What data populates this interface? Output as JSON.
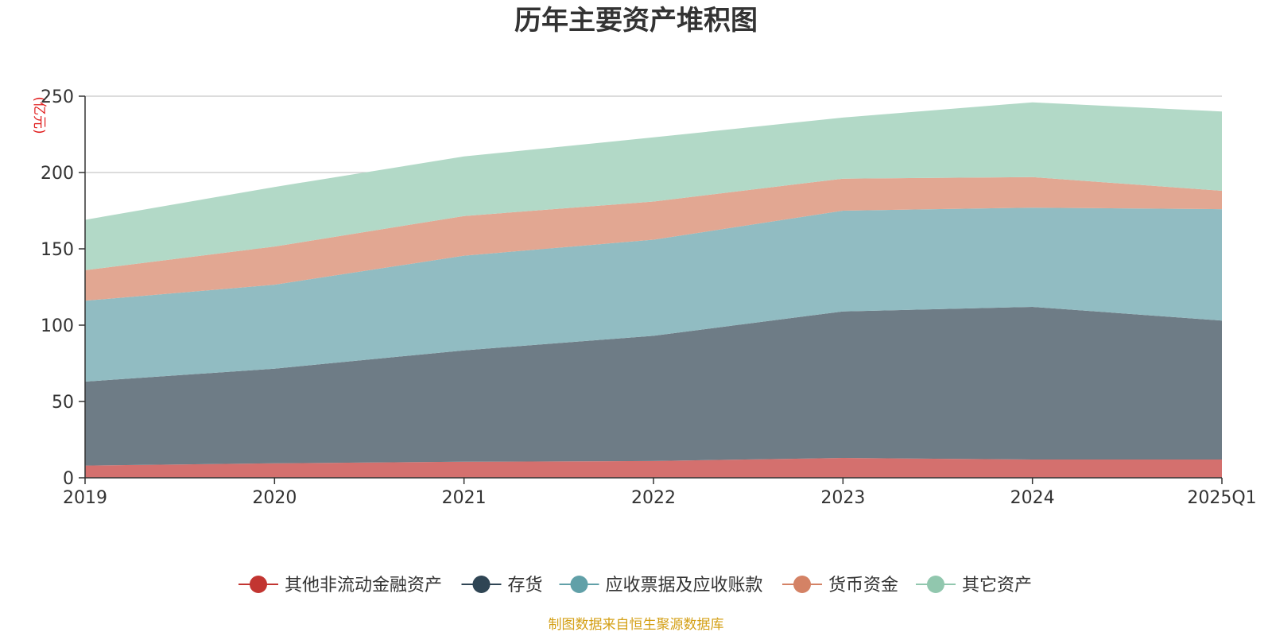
{
  "chart_data": {
    "type": "area",
    "stacked": true,
    "title": "历年主要资产堆积图",
    "unit_label": "(亿元)",
    "categories": [
      "2019",
      "2020",
      "2021",
      "2022",
      "2023",
      "2024",
      "2025Q1"
    ],
    "ylim": [
      0,
      250
    ],
    "yticks": [
      0,
      50,
      100,
      150,
      200,
      250
    ],
    "grid": true,
    "legend_position": "bottom",
    "series": [
      {
        "name": "其他非流动金融资产",
        "color": "#c23531",
        "fill": "#d4706e",
        "values": [
          8,
          9.5,
          10.5,
          11,
          13,
          12,
          12
        ]
      },
      {
        "name": "存货",
        "color": "#2f4554",
        "fill": "#6e7c86",
        "values": [
          55,
          62,
          73,
          82,
          96,
          100,
          91
        ]
      },
      {
        "name": "应收票据及应收账款",
        "color": "#61a0a8",
        "fill": "#91bcc2",
        "values": [
          53,
          55,
          62,
          63,
          66,
          65,
          73
        ]
      },
      {
        "name": "货币资金",
        "color": "#d48265",
        "fill": "#e2a792",
        "values": [
          20,
          25,
          26,
          25,
          21,
          20,
          12
        ]
      },
      {
        "name": "其它资产",
        "color": "#91c7ae",
        "fill": "#b2d9c7",
        "values": [
          33,
          39,
          39,
          42,
          40,
          49,
          52
        ]
      }
    ],
    "source": "制图数据来自恒生聚源数据库"
  }
}
